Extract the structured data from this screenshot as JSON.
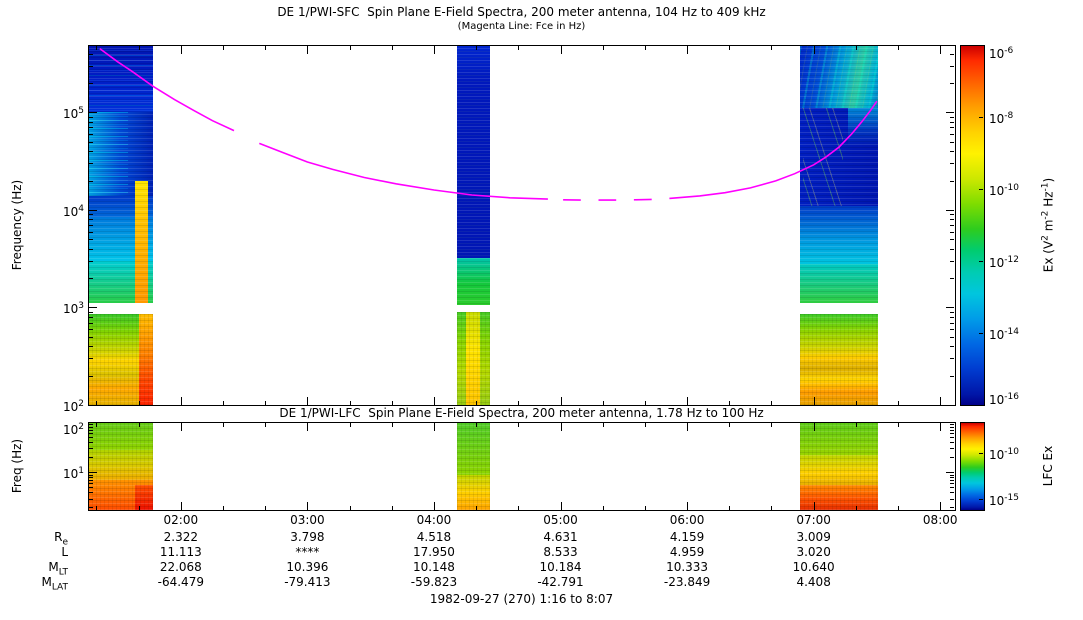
{
  "titles": {
    "sfc_title": "DE 1/PWI-SFC  Spin Plane E-Field Spectra, 200 meter antenna, 104 Hz to 409 kHz",
    "sfc_subtitle": "(Magenta Line: Fce in Hz)",
    "lfc_title": "DE 1/PWI-LFC  Spin Plane E-Field Spectra, 200 meter antenna, 1.78 Hz to 100 Hz",
    "caption": "1982-09-27 (270) 1:16 to 8:07"
  },
  "colors": {
    "fce_line": "#ff00ff",
    "frame": "#000000",
    "background": "#ffffff"
  },
  "time_axis": {
    "tick_hours": [
      2,
      3,
      4,
      5,
      6,
      7,
      8
    ],
    "tick_labels": [
      "02:00",
      "03:00",
      "04:00",
      "05:00",
      "06:00",
      "07:00",
      "08:00"
    ],
    "minor_tick_minutes": 20,
    "start_hour": 1.2667,
    "end_hour": 8.1167
  },
  "chart_data": [
    {
      "type": "heatmap",
      "name": "SFC spectrogram",
      "title": "DE 1/PWI-SFC Spin Plane E-Field Spectra, 200 meter antenna, 104 Hz to 409 kHz",
      "subtitle": "(Magenta Line: Fce in Hz)",
      "ylabel": "Frequency (Hz)",
      "y_scale": "log",
      "x_range_hours": [
        1.2667,
        8.1167
      ],
      "y_range_hz": [
        100,
        490000
      ],
      "y_tick_exponents": [
        2,
        3,
        4,
        5
      ],
      "colorbar": {
        "label_parts": [
          {
            "t": "Ex (V"
          },
          {
            "sup": "2"
          },
          {
            "t": " m"
          },
          {
            "sup": "-2"
          },
          {
            "t": " Hz"
          },
          {
            "sup": "-1"
          },
          {
            "t": ")"
          }
        ],
        "tick_exponents": [
          -6,
          -8,
          -10,
          -12,
          -14,
          -16
        ],
        "gradient": "linear-gradient(180deg,#cc0000 0%,#ff2a00 4%,#ff6a00 11%,#ff9e00 17%,#ffd200 24%,#fff200 30%,#cce800 37%,#7edd00 44%,#2ecc1e 51%,#00cc70 57%,#00ccb2 63%,#00c6de 69%,#009ce8 76%,#0068e4 83%,#003cd0 90%,#0016a8 97%,#000088 100%)"
      },
      "fce_line_hz": {
        "segments": [
          [
            [
              1.36,
              450000
            ],
            [
              1.5,
              330000
            ],
            [
              1.62,
              260000
            ],
            [
              1.78,
              185000
            ],
            [
              1.95,
              135000
            ],
            [
              2.1,
              105000
            ],
            [
              2.25,
              82000
            ],
            [
              2.42,
              65000
            ]
          ],
          [
            [
              2.62,
              48000
            ],
            [
              2.8,
              39000
            ],
            [
              3.0,
              31000
            ],
            [
              3.2,
              26000
            ],
            [
              3.45,
              21500
            ],
            [
              3.7,
              18500
            ],
            [
              4.0,
              16000
            ],
            [
              4.3,
              14200
            ],
            [
              4.6,
              13300
            ],
            [
              4.9,
              12900
            ]
          ],
          [
            [
              5.02,
              12700
            ],
            [
              5.16,
              12600
            ]
          ],
          [
            [
              5.3,
              12600
            ],
            [
              5.44,
              12600
            ]
          ],
          [
            [
              5.58,
              12700
            ],
            [
              5.72,
              12800
            ]
          ],
          [
            [
              5.86,
              13100
            ],
            [
              6.1,
              13900
            ],
            [
              6.3,
              15000
            ],
            [
              6.5,
              16800
            ],
            [
              6.7,
              19800
            ],
            [
              6.85,
              23500
            ],
            [
              7.0,
              29000
            ],
            [
              7.1,
              35000
            ],
            [
              7.2,
              44000
            ],
            [
              7.3,
              60000
            ],
            [
              7.38,
              80000
            ],
            [
              7.45,
              105000
            ],
            [
              7.5,
              130000
            ]
          ]
        ]
      },
      "data_bursts": [
        {
          "t_start": 1.2667,
          "t_end": 1.78,
          "segments": [
            {
              "f": [
                490000,
                100000
              ],
              "bg": "linear-gradient(180deg,#0014b0 0%,#001ec8 55%,#0030d8 100%)"
            },
            {
              "f": [
                490000,
                60000
              ],
              "bg": "repeating-linear-gradient(180deg, rgba(0,170,255,0.28) 0px 1px, transparent 1px 5px, rgba(60,120,255,0.22) 5px 6px, transparent 6px 10px)"
            },
            {
              "f": [
                100000,
                14000
              ],
              "bg": "linear-gradient(90deg,#00a0e0 0%,#0048d4 50%,#0022b4 100%)"
            },
            {
              "f": [
                100000,
                14000
              ],
              "xf": [
                0,
                0.62
              ],
              "bg": "repeating-linear-gradient(180deg, rgba(0,255,255,0.30) 0px 1px, transparent 1px 4px, rgba(0,200,255,0.18) 4px 5px, transparent 5px 8px)"
            },
            {
              "f": [
                14000,
                8500
              ],
              "bg": "linear-gradient(180deg,#0038c8 0%,#0068d8 100%)"
            },
            {
              "f": [
                8500,
                3000
              ],
              "bg": "linear-gradient(180deg,#0078dc 0%,#00c4e8 100%)"
            },
            {
              "f": [
                3000,
                1100
              ],
              "bg": "linear-gradient(180deg,#00ccd4 0%,#28cc48 100%)"
            },
            {
              "f": [
                20000,
                1100
              ],
              "xf": [
                0.72,
                0.93
              ],
              "bg": "linear-gradient(180deg,#ffe600 0%,#ffc000 35%,#ff9800 100%)"
            },
            {
              "f": [
                850,
                100
              ],
              "bg": "linear-gradient(180deg,#38c828 0%,#84d400 20%,#c4d400 38%,#ffd400 52%,#dcc400 66%,#ffa800 82%,#e8b400 100%)"
            },
            {
              "f": [
                850,
                100
              ],
              "xf": [
                0.78,
                1
              ],
              "bg": "linear-gradient(180deg,#ffbe00 0%,#ff8000 45%,#ff4800 72%,#ff2400 100%)"
            },
            {
              "f": [
                490000,
                1100
              ],
              "bg": "repeating-linear-gradient(180deg, rgba(0,0,0,0.10) 0px 1px, transparent 1px 3px, rgba(255,255,255,0.12) 3px 4px, transparent 4px 6px)"
            },
            {
              "f": [
                850,
                100
              ],
              "bg": "repeating-linear-gradient(180deg, rgba(0,0,0,0.10) 0px 1px, transparent 1px 3px, rgba(255,255,255,0.12) 3px 4px, transparent 4px 6px)"
            },
            {
              "f": [
                850,
                100
              ],
              "bg": "repeating-linear-gradient(90deg, rgba(0,0,0,0.07) 0px 1px, transparent 1px 4px)"
            }
          ]
        },
        {
          "t_start": 4.18,
          "t_end": 4.44,
          "segments": [
            {
              "f": [
                490000,
                3200
              ],
              "bg": "linear-gradient(180deg,#0026d0 0%,#0018bc 18%,#0016b4 100%)"
            },
            {
              "f": [
                490000,
                3200
              ],
              "bg": "repeating-linear-gradient(180deg, rgba(70,120,255,0.18) 0px 1px, transparent 1px 6px)"
            },
            {
              "f": [
                3200,
                1050
              ],
              "bg": "linear-gradient(180deg,#00c4ac 0%,#14c83c 55%,#2ccc2c 100%)"
            },
            {
              "f": [
                900,
                100
              ],
              "bg": "linear-gradient(180deg,#46cc24 0%,#8ad400 32%,#b4d800 65%,#98cc14 100%)"
            },
            {
              "f": [
                900,
                100
              ],
              "xf": [
                0.28,
                0.72
              ],
              "bg": "linear-gradient(180deg,#c8dc00 0%,#ffe400 40%,#ffc400 100%)"
            },
            {
              "f": [
                490000,
                1050
              ],
              "bg": "repeating-linear-gradient(180deg, rgba(0,0,0,0.10) 0px 1px, transparent 1px 3px, rgba(255,255,255,0.12) 3px 4px, transparent 4px 6px)"
            },
            {
              "f": [
                900,
                100
              ],
              "bg": "repeating-linear-gradient(180deg, rgba(0,0,0,0.10) 0px 1px, transparent 1px 3px, rgba(255,255,255,0.12) 3px 4px, transparent 4px 6px)"
            },
            {
              "f": [
                900,
                100
              ],
              "bg": "repeating-linear-gradient(90deg, rgba(0,0,0,0.07) 0px 1px, transparent 1px 4px)"
            }
          ]
        },
        {
          "t_start": 6.89,
          "t_end": 7.51,
          "segments": [
            {
              "f": [
                490000,
                110000
              ],
              "bg": "linear-gradient(102deg,#0026c8 0%,#004cd4 28%,#00a0d8 52%,#2cc8a4 72%,#00b0d4 88%,#0078c8 100%)"
            },
            {
              "f": [
                490000,
                110000
              ],
              "bg": "repeating-linear-gradient(100deg, rgba(0,255,200,0.25) 0px 2px, transparent 2px 7px, rgba(220,255,0,0.10) 7px 8px, transparent 8px 13px)"
            },
            {
              "f": [
                110000,
                11000
              ],
              "bg": "linear-gradient(90deg,#001ec0 0%,#0016b0 100%)"
            },
            {
              "f": [
                110000,
                11000
              ],
              "xf": [
                0.04,
                0.55
              ],
              "bg": "repeating-linear-gradient(72deg, transparent 0px 8px, rgba(140,255,40,0.30) 8px 9px, transparent 9px 14px, rgba(255,255,90,0.26) 14px 15px, transparent 15px 22px)"
            },
            {
              "f": [
                110000,
                45000
              ],
              "xf": [
                0.62,
                1
              ],
              "bg": "linear-gradient(180deg, rgba(0,170,225,0.75) 0%, rgba(0,110,210,0.35) 60%, rgba(0,60,190,0) 100%)"
            },
            {
              "f": [
                11000,
                2800
              ],
              "bg": "linear-gradient(180deg,#003cc8 0%,#009ce0 62%,#00c4e0 100%)"
            },
            {
              "f": [
                2800,
                1100
              ],
              "bg": "linear-gradient(180deg,#00c8c4 0%,#30cc40 100%)"
            },
            {
              "f": [
                850,
                100
              ],
              "bg": "linear-gradient(180deg,#3ecc28 0%,#8cd400 18%,#ccd400 36%,#ffcc00 48%,#dcae00 60%,#ffd400 72%,#ff9c00 86%,#e8a400 100%)"
            },
            {
              "f": [
                490000,
                1100
              ],
              "bg": "repeating-linear-gradient(180deg, rgba(0,0,0,0.10) 0px 1px, transparent 1px 3px, rgba(255,255,255,0.12) 3px 4px, transparent 4px 6px)"
            },
            {
              "f": [
                850,
                100
              ],
              "bg": "repeating-linear-gradient(180deg, rgba(0,0,0,0.10) 0px 1px, transparent 1px 3px, rgba(255,255,255,0.12) 3px 4px, transparent 4px 6px)"
            },
            {
              "f": [
                850,
                100
              ],
              "bg": "repeating-linear-gradient(90deg, rgba(0,0,0,0.07) 0px 1px, transparent 1px 4px)"
            }
          ]
        }
      ]
    },
    {
      "type": "heatmap",
      "name": "LFC spectrogram",
      "title": "DE 1/PWI-LFC Spin Plane E-Field Spectra, 200 meter antenna, 1.78 Hz to 100 Hz",
      "ylabel": "Freq (Hz)",
      "y_scale": "log",
      "x_range_hours": [
        1.2667,
        8.1167
      ],
      "y_range_hz": [
        1.78,
        100
      ],
      "y_tick_exponents": [
        1,
        2
      ],
      "colorbar": {
        "label": "LFC Ex",
        "ticks": [
          {
            "exp": -10,
            "frac": 0.35
          },
          {
            "exp": -15,
            "frac": 0.87
          }
        ],
        "gradient": "linear-gradient(180deg,#cc0000 0%,#ff2a00 4%,#ff6a00 11%,#ff9e00 17%,#ffd200 24%,#fff200 30%,#cce800 37%,#7edd00 44%,#2ecc1e 51%,#00cc70 57%,#00ccb2 63%,#00c6de 69%,#009ce8 76%,#0068e4 83%,#003cd0 90%,#0016a8 97%,#000088 100%)"
      },
      "data_bursts": [
        {
          "t_start": 1.2667,
          "t_end": 1.78,
          "segments": [
            {
              "f": [
                100,
                28
              ],
              "bg": "linear-gradient(180deg,#64cc18 0%,#92d400 100%)"
            },
            {
              "f": [
                28,
                7
              ],
              "bg": "linear-gradient(180deg,#b0d400 0%,#dcc800 55%,#f0ac00 100%)"
            },
            {
              "f": [
                7,
                1.78
              ],
              "bg": "linear-gradient(180deg,#ff9400 0%,#ff6c00 55%,#ff4c00 100%)"
            },
            {
              "f": [
                5.5,
                1.78
              ],
              "xf": [
                0.72,
                1
              ],
              "bg": "linear-gradient(180deg,#ff5000 0%,#ee1000 100%)"
            },
            {
              "f": [
                100,
                1.78
              ],
              "bg": "repeating-linear-gradient(180deg, rgba(0,0,0,0.10) 0px 1px, transparent 1px 3px, rgba(255,255,255,0.12) 3px 4px, transparent 4px 6px)"
            },
            {
              "f": [
                100,
                1.78
              ],
              "bg": "repeating-linear-gradient(90deg, rgba(0,0,0,0.07) 0px 1px, transparent 1px 4px)"
            }
          ]
        },
        {
          "t_start": 4.18,
          "t_end": 4.44,
          "segments": [
            {
              "f": [
                100,
                9
              ],
              "bg": "linear-gradient(180deg,#50cc28 0%,#8ed400 100%)"
            },
            {
              "f": [
                9,
                1.78
              ],
              "bg": "linear-gradient(180deg,#c2d600 0%,#ffd000 50%,#ffa400 100%)"
            },
            {
              "f": [
                100,
                1.78
              ],
              "bg": "repeating-linear-gradient(180deg, rgba(0,0,0,0.10) 0px 1px, transparent 1px 3px, rgba(255,255,255,0.12) 3px 4px, transparent 4px 6px)"
            },
            {
              "f": [
                100,
                1.78
              ],
              "bg": "repeating-linear-gradient(90deg, rgba(0,0,0,0.07) 0px 1px, transparent 1px 4px)"
            }
          ]
        },
        {
          "t_start": 6.89,
          "t_end": 7.51,
          "segments": [
            {
              "f": [
                100,
                22
              ],
              "bg": "linear-gradient(180deg,#5ccc18 0%,#9ad400 100%)"
            },
            {
              "f": [
                22,
                5.5
              ],
              "bg": "linear-gradient(180deg,#bed600 0%,#ffd000 60%,#e8b000 100%)"
            },
            {
              "f": [
                5.5,
                1.78
              ],
              "bg": "linear-gradient(180deg,#ff8c00 0%,#ff5400 55%,#e62e00 100%)"
            },
            {
              "f": [
                100,
                1.78
              ],
              "bg": "repeating-linear-gradient(180deg, rgba(0,0,0,0.10) 0px 1px, transparent 1px 3px, rgba(255,255,255,0.12) 3px 4px, transparent 4px 6px)"
            },
            {
              "f": [
                100,
                1.78
              ],
              "bg": "repeating-linear-gradient(90deg, rgba(0,0,0,0.07) 0px 1px, transparent 1px 4px)"
            }
          ]
        }
      ]
    }
  ],
  "ephemeris": {
    "rows": [
      {
        "label": {
          "base": "R",
          "sub": "e"
        },
        "values": [
          "2.322",
          "3.798",
          "4.518",
          "4.631",
          "4.159",
          "3.009"
        ]
      },
      {
        "label": {
          "base": "L",
          "sub": ""
        },
        "values": [
          "11.113",
          "****",
          "17.950",
          "8.533",
          "4.959",
          "3.020"
        ]
      },
      {
        "label": {
          "base": "M",
          "sub": "LT"
        },
        "values": [
          "22.068",
          "10.396",
          "10.148",
          "10.184",
          "10.333",
          "10.640"
        ]
      },
      {
        "label": {
          "base": "M",
          "sub": "LAT"
        },
        "values": [
          "-64.479",
          "-79.413",
          "-59.823",
          "-42.791",
          "-23.849",
          "4.408"
        ]
      }
    ]
  }
}
